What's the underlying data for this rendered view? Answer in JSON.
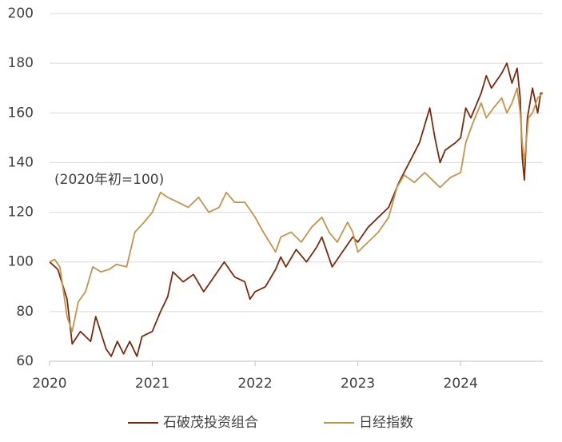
{
  "chart_data": {
    "type": "line",
    "annotation": "(2020年初=100)",
    "xlim": [
      2020,
      2024.8
    ],
    "xticks": [
      2020,
      2021,
      2022,
      2023,
      2024
    ],
    "ylim": [
      60,
      200
    ],
    "yticks": [
      60,
      80,
      100,
      120,
      140,
      160,
      180,
      200
    ],
    "grid": true,
    "legend": "bottom",
    "series": [
      {
        "name": "石破茂投资组合",
        "color": "#7b2a0c",
        "x": [
          2020.0,
          2020.08,
          2020.17,
          2020.22,
          2020.3,
          2020.4,
          2020.45,
          2020.55,
          2020.6,
          2020.66,
          2020.72,
          2020.78,
          2020.85,
          2020.9,
          2021.0,
          2021.08,
          2021.15,
          2021.2,
          2021.3,
          2021.4,
          2021.5,
          2021.6,
          2021.7,
          2021.8,
          2021.9,
          2021.95,
          2022.0,
          2022.1,
          2022.2,
          2022.25,
          2022.3,
          2022.4,
          2022.5,
          2022.6,
          2022.65,
          2022.7,
          2022.75,
          2022.85,
          2022.95,
          2023.0,
          2023.1,
          2023.2,
          2023.3,
          2023.4,
          2023.5,
          2023.6,
          2023.7,
          2023.75,
          2023.8,
          2023.85,
          2023.95,
          2024.0,
          2024.05,
          2024.1,
          2024.2,
          2024.25,
          2024.3,
          2024.4,
          2024.45,
          2024.5,
          2024.55,
          2024.58,
          2024.6,
          2024.62,
          2024.65,
          2024.7,
          2024.75,
          2024.78,
          2024.8
        ],
        "values": [
          100,
          97,
          85,
          67,
          72,
          68,
          78,
          65,
          62,
          68,
          63,
          68,
          62,
          70,
          72,
          80,
          86,
          96,
          92,
          95,
          88,
          94,
          100,
          94,
          92,
          85,
          88,
          90,
          97,
          102,
          98,
          105,
          100,
          106,
          110,
          104,
          98,
          104,
          110,
          108,
          114,
          118,
          122,
          132,
          140,
          148,
          162,
          150,
          140,
          145,
          148,
          150,
          162,
          158,
          168,
          175,
          170,
          176,
          180,
          172,
          178,
          166,
          142,
          133,
          158,
          170,
          160,
          168,
          168
        ]
      },
      {
        "name": "日经指数",
        "color": "#c4944a",
        "x": [
          2020.0,
          2020.05,
          2020.1,
          2020.17,
          2020.22,
          2020.28,
          2020.35,
          2020.42,
          2020.5,
          2020.58,
          2020.65,
          2020.75,
          2020.83,
          2020.92,
          2021.0,
          2021.08,
          2021.15,
          2021.25,
          2021.35,
          2021.45,
          2021.55,
          2021.65,
          2021.72,
          2021.8,
          2021.9,
          2022.0,
          2022.08,
          2022.2,
          2022.25,
          2022.35,
          2022.45,
          2022.55,
          2022.65,
          2022.72,
          2022.8,
          2022.9,
          2022.95,
          2023.0,
          2023.1,
          2023.2,
          2023.3,
          2023.38,
          2023.45,
          2023.55,
          2023.65,
          2023.75,
          2023.8,
          2023.9,
          2024.0,
          2024.05,
          2024.12,
          2024.2,
          2024.25,
          2024.32,
          2024.4,
          2024.45,
          2024.5,
          2024.55,
          2024.58,
          2024.6,
          2024.62,
          2024.66,
          2024.7,
          2024.75,
          2024.8
        ],
        "values": [
          100,
          101,
          98,
          78,
          72,
          84,
          88,
          98,
          96,
          97,
          99,
          98,
          112,
          116,
          120,
          128,
          126,
          124,
          122,
          126,
          120,
          122,
          128,
          124,
          124,
          118,
          112,
          104,
          110,
          112,
          108,
          114,
          118,
          112,
          108,
          116,
          112,
          104,
          108,
          112,
          118,
          130,
          135,
          132,
          136,
          132,
          130,
          134,
          136,
          148,
          156,
          164,
          158,
          162,
          166,
          160,
          164,
          170,
          160,
          148,
          140,
          158,
          160,
          166,
          168
        ]
      }
    ]
  }
}
